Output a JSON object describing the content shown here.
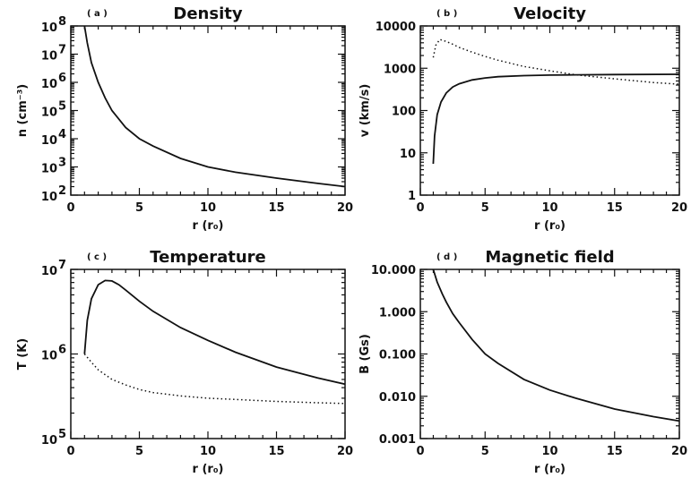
{
  "chart_data": [
    {
      "id": "a",
      "type": "line",
      "panel_label": "( a )",
      "title": "Density",
      "xlabel": "r (r₀)",
      "ylabel": "n (cm⁻³)",
      "xlim": [
        0,
        20
      ],
      "ylim": [
        100,
        100000000
      ],
      "yscale": "log",
      "x_ticks": [
        0,
        5,
        10,
        15,
        20
      ],
      "y_ticks": [
        {
          "value": 100,
          "mantissa": "10",
          "exp": "2"
        },
        {
          "value": 1000,
          "mantissa": "10",
          "exp": "3"
        },
        {
          "value": 10000,
          "mantissa": "10",
          "exp": "4"
        },
        {
          "value": 100000,
          "mantissa": "10",
          "exp": "5"
        },
        {
          "value": 1000000,
          "mantissa": "10",
          "exp": "6"
        },
        {
          "value": 10000000,
          "mantissa": "10",
          "exp": "7"
        },
        {
          "value": 100000000,
          "mantissa": "10",
          "exp": "8"
        }
      ],
      "series": [
        {
          "style": "solid",
          "x": [
            1.0,
            1.2,
            1.5,
            2,
            2.5,
            3,
            4,
            5,
            6,
            8,
            10,
            12,
            15,
            18,
            20
          ],
          "y": [
            100000000,
            25000000,
            5000000,
            1000000,
            280000,
            100000,
            25000,
            10000,
            5500,
            2000,
            1000,
            650,
            400,
            260,
            200
          ]
        }
      ]
    },
    {
      "id": "b",
      "type": "line",
      "panel_label": "( b )",
      "title": "Velocity",
      "xlabel": "r (r₀)",
      "ylabel": "v (km/s)",
      "xlim": [
        0,
        20
      ],
      "ylim": [
        1,
        10000
      ],
      "yscale": "log",
      "x_ticks": [
        0,
        5,
        10,
        15,
        20
      ],
      "y_ticks": [
        {
          "value": 1,
          "label": "1"
        },
        {
          "value": 10,
          "label": "10"
        },
        {
          "value": 100,
          "label": "100"
        },
        {
          "value": 1000,
          "label": "1000"
        },
        {
          "value": 10000,
          "label": "10000"
        }
      ],
      "series": [
        {
          "style": "solid",
          "x": [
            1.0,
            1.1,
            1.3,
            1.6,
            2,
            2.5,
            3,
            4,
            5,
            6,
            8,
            10,
            12,
            15,
            20
          ],
          "y": [
            5.5,
            25,
            80,
            160,
            260,
            360,
            430,
            530,
            590,
            630,
            670,
            690,
            700,
            710,
            720
          ]
        },
        {
          "style": "dotted",
          "x": [
            1.0,
            1.2,
            1.5,
            2,
            2.5,
            3,
            4,
            5,
            6,
            8,
            10,
            12,
            15,
            18,
            20
          ],
          "y": [
            1800,
            3500,
            4800,
            4300,
            3700,
            3100,
            2400,
            1900,
            1550,
            1100,
            870,
            700,
            560,
            460,
            420
          ]
        }
      ]
    },
    {
      "id": "c",
      "type": "line",
      "panel_label": "( c )",
      "title": "Temperature",
      "xlabel": "r (r₀)",
      "ylabel": "T (K)",
      "xlim": [
        0,
        20
      ],
      "ylim": [
        100000,
        10000000
      ],
      "yscale": "log",
      "x_ticks": [
        0,
        5,
        10,
        15,
        20
      ],
      "y_ticks": [
        {
          "value": 100000,
          "mantissa": "10",
          "exp": "5"
        },
        {
          "value": 1000000,
          "mantissa": "10",
          "exp": "6"
        },
        {
          "value": 10000000,
          "mantissa": "10",
          "exp": "7"
        }
      ],
      "series": [
        {
          "style": "solid",
          "x": [
            1.0,
            1.2,
            1.5,
            2,
            2.5,
            3,
            3.5,
            4,
            5,
            6,
            8,
            10,
            12,
            15,
            18,
            20
          ],
          "y": [
            1000000,
            2500000,
            4500000,
            6600000,
            7400000,
            7300000,
            6600000,
            5700000,
            4200000,
            3200000,
            2050000,
            1450000,
            1050000,
            700000,
            520000,
            440000
          ]
        },
        {
          "style": "dotted",
          "x": [
            1.0,
            1.5,
            2,
            3,
            4,
            5,
            6,
            8,
            10,
            12,
            15,
            18,
            20
          ],
          "y": [
            1000000,
            800000,
            650000,
            500000,
            430000,
            380000,
            350000,
            320000,
            300000,
            290000,
            275000,
            265000,
            260000
          ]
        }
      ]
    },
    {
      "id": "d",
      "type": "line",
      "panel_label": "( d )",
      "title": "Magnetic field",
      "xlabel": "r (r₀)",
      "ylabel": "B (Gs)",
      "xlim": [
        0,
        20
      ],
      "ylim": [
        0.001,
        10
      ],
      "yscale": "log",
      "x_ticks": [
        0,
        5,
        10,
        15,
        20
      ],
      "y_ticks": [
        {
          "value": 0.001,
          "label": "0.001"
        },
        {
          "value": 0.01,
          "label": "0.010"
        },
        {
          "value": 0.1,
          "label": "0.100"
        },
        {
          "value": 1,
          "label": "1.000"
        },
        {
          "value": 10,
          "label": "10.000"
        }
      ],
      "series": [
        {
          "style": "solid",
          "x": [
            1.0,
            1.3,
            1.7,
            2,
            2.5,
            3,
            4,
            5,
            6,
            8,
            10,
            12,
            15,
            18,
            20
          ],
          "y": [
            10,
            5,
            2.6,
            1.7,
            0.9,
            0.55,
            0.22,
            0.1,
            0.06,
            0.025,
            0.014,
            0.009,
            0.005,
            0.0033,
            0.0026
          ]
        }
      ]
    }
  ]
}
